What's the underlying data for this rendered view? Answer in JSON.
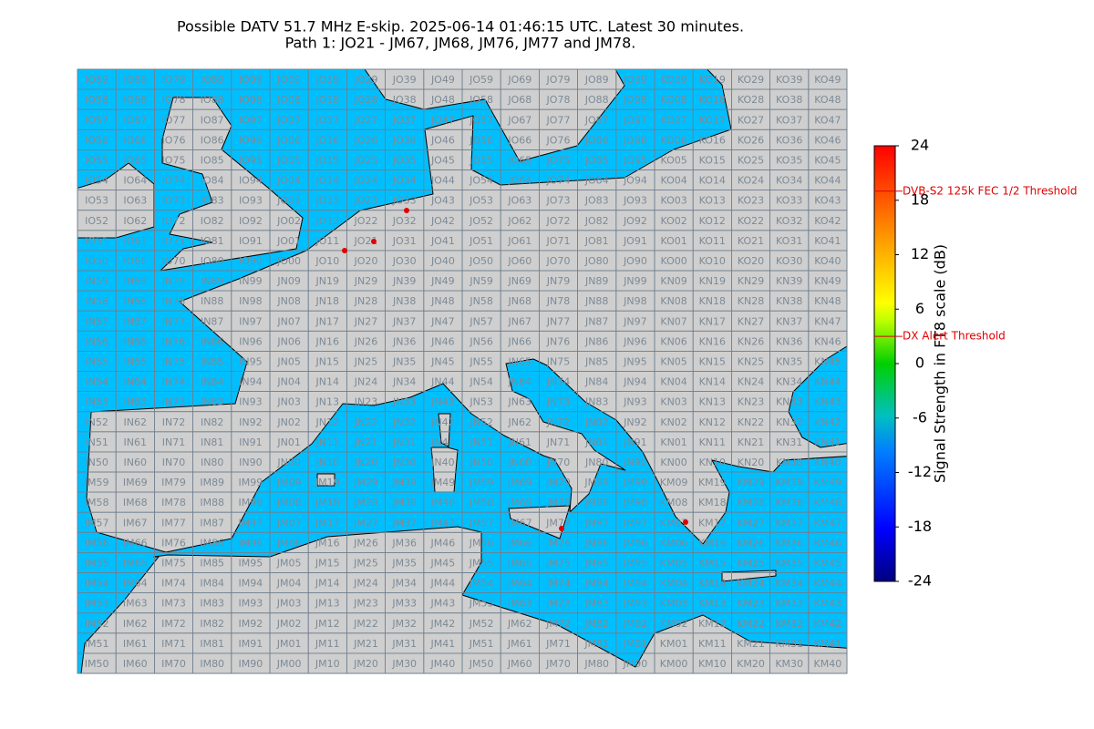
{
  "header": {
    "title": "Possible DATV 51.7 MHz E-skip. 2025-06-14 01:46:15 UTC. Latest 30 minutes.",
    "subtitle": "Path 1: JO21 - JM67, JM68, JM76, JM77 and JM78."
  },
  "grid": {
    "rows": [
      [
        "IO59",
        "IO69",
        "IO79",
        "IO89",
        "IO99",
        "JO09",
        "JO19",
        "JO29",
        "JO39",
        "JO49",
        "JO59",
        "JO69",
        "JO79",
        "JO89",
        "JO99",
        "KO09",
        "KO19",
        "KO29",
        "KO39",
        "KO49"
      ],
      [
        "IO58",
        "IO68",
        "IO78",
        "IO88",
        "IO98",
        "JO08",
        "JO18",
        "JO28",
        "JO38",
        "JO48",
        "JO58",
        "JO68",
        "JO78",
        "JO88",
        "JO98",
        "KO08",
        "KO18",
        "KO28",
        "KO38",
        "KO48"
      ],
      [
        "IO57",
        "IO67",
        "IO77",
        "IO87",
        "IO97",
        "JO07",
        "JO17",
        "JO27",
        "JO37",
        "JO47",
        "JO57",
        "JO67",
        "JO77",
        "JO87",
        "JO97",
        "KO07",
        "KO17",
        "KO27",
        "KO37",
        "KO47"
      ],
      [
        "IO56",
        "IO66",
        "IO76",
        "IO86",
        "IO96",
        "JO06",
        "JO16",
        "JO26",
        "JO36",
        "JO46",
        "JO56",
        "JO66",
        "JO76",
        "JO86",
        "JO96",
        "KO06",
        "KO16",
        "KO26",
        "KO36",
        "KO46"
      ],
      [
        "IO55",
        "IO65",
        "IO75",
        "IO85",
        "IO95",
        "JO05",
        "JO15",
        "JO25",
        "JO35",
        "JO45",
        "JO55",
        "JO65",
        "JO75",
        "JO85",
        "JO95",
        "KO05",
        "KO15",
        "KO25",
        "KO35",
        "KO45"
      ],
      [
        "IO54",
        "IO64",
        "IO74",
        "IO84",
        "IO94",
        "JO04",
        "JO14",
        "JO24",
        "JO34",
        "JO44",
        "JO54",
        "JO64",
        "JO74",
        "JO84",
        "JO94",
        "KO04",
        "KO14",
        "KO24",
        "KO34",
        "KO44"
      ],
      [
        "IO53",
        "IO63",
        "IO73",
        "IO83",
        "IO93",
        "JO03",
        "JO13",
        "JO23",
        "JO33",
        "JO43",
        "JO53",
        "JO63",
        "JO73",
        "JO83",
        "JO93",
        "KO03",
        "KO13",
        "KO23",
        "KO33",
        "KO43"
      ],
      [
        "IO52",
        "IO62",
        "IO72",
        "IO82",
        "IO92",
        "JO02",
        "JO12",
        "JO22",
        "JO32",
        "JO42",
        "JO52",
        "JO62",
        "JO72",
        "JO82",
        "JO92",
        "KO02",
        "KO12",
        "KO22",
        "KO32",
        "KO42"
      ],
      [
        "IO51",
        "IO61",
        "IO71",
        "IO81",
        "IO91",
        "JO01",
        "JO11",
        "JO21",
        "JO31",
        "JO41",
        "JO51",
        "JO61",
        "JO71",
        "JO81",
        "JO91",
        "KO01",
        "KO11",
        "KO21",
        "KO31",
        "KO41"
      ],
      [
        "IO50",
        "IO60",
        "IO70",
        "IO80",
        "IO90",
        "JO00",
        "JO10",
        "JO20",
        "JO30",
        "JO40",
        "JO50",
        "JO60",
        "JO70",
        "JO80",
        "JO90",
        "KO00",
        "KO10",
        "KO20",
        "KO30",
        "KO40"
      ],
      [
        "IN59",
        "IN69",
        "IN79",
        "IN89",
        "IN99",
        "JN09",
        "JN19",
        "JN29",
        "JN39",
        "JN49",
        "JN59",
        "JN69",
        "JN79",
        "JN89",
        "JN99",
        "KN09",
        "KN19",
        "KN29",
        "KN39",
        "KN49"
      ],
      [
        "IN58",
        "IN68",
        "IN78",
        "IN88",
        "IN98",
        "JN08",
        "JN18",
        "JN28",
        "JN38",
        "JN48",
        "JN58",
        "JN68",
        "JN78",
        "JN88",
        "JN98",
        "KN08",
        "KN18",
        "KN28",
        "KN38",
        "KN48"
      ],
      [
        "IN57",
        "IN67",
        "IN77",
        "IN87",
        "IN97",
        "JN07",
        "JN17",
        "JN27",
        "JN37",
        "JN47",
        "JN57",
        "JN67",
        "JN77",
        "JN87",
        "JN97",
        "KN07",
        "KN17",
        "KN27",
        "KN37",
        "KN47"
      ],
      [
        "IN56",
        "IN66",
        "IN76",
        "IN86",
        "IN96",
        "JN06",
        "JN16",
        "JN26",
        "JN36",
        "JN46",
        "JN56",
        "JN66",
        "JN76",
        "JN86",
        "JN96",
        "KN06",
        "KN16",
        "KN26",
        "KN36",
        "KN46"
      ],
      [
        "IN55",
        "IN65",
        "IN75",
        "IN85",
        "IN95",
        "JN05",
        "JN15",
        "JN25",
        "JN35",
        "JN45",
        "JN55",
        "JN65",
        "JN75",
        "JN85",
        "JN95",
        "KN05",
        "KN15",
        "KN25",
        "KN35",
        "KN45"
      ],
      [
        "IN54",
        "IN64",
        "IN74",
        "IN84",
        "IN94",
        "JN04",
        "JN14",
        "JN24",
        "JN34",
        "JN44",
        "JN54",
        "JN64",
        "JN74",
        "JN84",
        "JN94",
        "KN04",
        "KN14",
        "KN24",
        "KN34",
        "KN44"
      ],
      [
        "IN53",
        "IN63",
        "IN73",
        "IN83",
        "IN93",
        "JN03",
        "JN13",
        "JN23",
        "JN33",
        "JN43",
        "JN53",
        "JN63",
        "JN73",
        "JN83",
        "JN93",
        "KN03",
        "KN13",
        "KN23",
        "KN33",
        "KN43"
      ],
      [
        "IN52",
        "IN62",
        "IN72",
        "IN82",
        "IN92",
        "JN02",
        "JN12",
        "JN22",
        "JN32",
        "JN42",
        "JN52",
        "JN62",
        "JN72",
        "JN82",
        "JN92",
        "KN02",
        "KN12",
        "KN22",
        "KN32",
        "KN42"
      ],
      [
        "IN51",
        "IN61",
        "IN71",
        "IN81",
        "IN91",
        "JN01",
        "JN11",
        "JN21",
        "JN31",
        "JN41",
        "JN51",
        "JN61",
        "JN71",
        "JN81",
        "JN91",
        "KN01",
        "KN11",
        "KN21",
        "KN31",
        "KN41"
      ],
      [
        "IN50",
        "IN60",
        "IN70",
        "IN80",
        "IN90",
        "JN00",
        "JN10",
        "JN20",
        "JN30",
        "JN40",
        "JN50",
        "JN60",
        "JN70",
        "JN80",
        "JN90",
        "KN00",
        "KN10",
        "KN20",
        "KN30",
        "KN40"
      ],
      [
        "IM59",
        "IM69",
        "IM79",
        "IM89",
        "IM99",
        "JM09",
        "JM19",
        "JM29",
        "JM39",
        "JM49",
        "JM59",
        "JM69",
        "JM79",
        "JM89",
        "JM99",
        "KM09",
        "KM19",
        "KM29",
        "KM39",
        "KM49"
      ],
      [
        "IM58",
        "IM68",
        "IM78",
        "IM88",
        "IM98",
        "JM08",
        "JM18",
        "JM28",
        "JM38",
        "JM48",
        "JM58",
        "JM68",
        "JM78",
        "JM88",
        "JM98",
        "KM08",
        "KM18",
        "KM28",
        "KM38",
        "KM48"
      ],
      [
        "IM57",
        "IM67",
        "IM77",
        "IM87",
        "IM97",
        "JM07",
        "JM17",
        "JM27",
        "JM37",
        "JM47",
        "JM57",
        "JM67",
        "JM77",
        "JM87",
        "JM97",
        "KM07",
        "KM17",
        "KM27",
        "KM37",
        "KM47"
      ],
      [
        "IM56",
        "IM66",
        "IM76",
        "IM86",
        "IM96",
        "JM06",
        "JM16",
        "JM26",
        "JM36",
        "JM46",
        "JM56",
        "JM66",
        "JM76",
        "JM86",
        "JM96",
        "KM06",
        "KM16",
        "KM26",
        "KM36",
        "KM46"
      ],
      [
        "IM55",
        "IM65",
        "IM75",
        "IM85",
        "IM95",
        "JM05",
        "JM15",
        "JM25",
        "JM35",
        "JM45",
        "JM55",
        "JM65",
        "JM75",
        "JM85",
        "JM95",
        "KM05",
        "KM15",
        "KM25",
        "KM35",
        "KM45"
      ],
      [
        "IM54",
        "IM64",
        "IM74",
        "IM84",
        "IM94",
        "JM04",
        "JM14",
        "JM24",
        "JM34",
        "JM44",
        "JM54",
        "JM64",
        "JM74",
        "JM84",
        "JM94",
        "KM04",
        "KM14",
        "KM24",
        "KM34",
        "KM44"
      ],
      [
        "IM53",
        "IM63",
        "IM73",
        "IM83",
        "IM93",
        "JM03",
        "JM13",
        "JM23",
        "JM33",
        "JM43",
        "JM53",
        "JM63",
        "JM73",
        "JM83",
        "JM93",
        "KM03",
        "KM13",
        "KM23",
        "KM33",
        "KM43"
      ],
      [
        "IM52",
        "IM62",
        "IM72",
        "IM82",
        "IM92",
        "JM02",
        "JM12",
        "JM22",
        "JM32",
        "JM42",
        "JM52",
        "JM62",
        "JM72",
        "JM82",
        "JM92",
        "KM02",
        "KM12",
        "KM22",
        "KM32",
        "KM42"
      ],
      [
        "IM51",
        "IM61",
        "IM71",
        "IM81",
        "IM91",
        "JM01",
        "JM11",
        "JM21",
        "JM31",
        "JM41",
        "JM51",
        "JM61",
        "JM71",
        "JM81",
        "JM91",
        "KM01",
        "KM11",
        "KM21",
        "KM31",
        "KM41"
      ],
      [
        "IM50",
        "IM60",
        "IM70",
        "IM80",
        "IM90",
        "JM00",
        "JM10",
        "JM20",
        "JM30",
        "JM40",
        "JM50",
        "JM60",
        "JM70",
        "JM80",
        "JM90",
        "KM00",
        "KM10",
        "KM20",
        "KM30",
        "KM40"
      ]
    ]
  },
  "colorbar": {
    "label": "Signal Strength in FT8 scale (dB)",
    "ylim": [
      -24,
      24
    ],
    "yticks": [
      -24,
      -18,
      -12,
      -6,
      0,
      6,
      12,
      18,
      24
    ],
    "thresholds": [
      {
        "value": 19,
        "label": "DVB-S2 125k FEC 1/2 Threshold"
      },
      {
        "value": 3,
        "label": "DX Alert Threshold"
      }
    ]
  }
}
